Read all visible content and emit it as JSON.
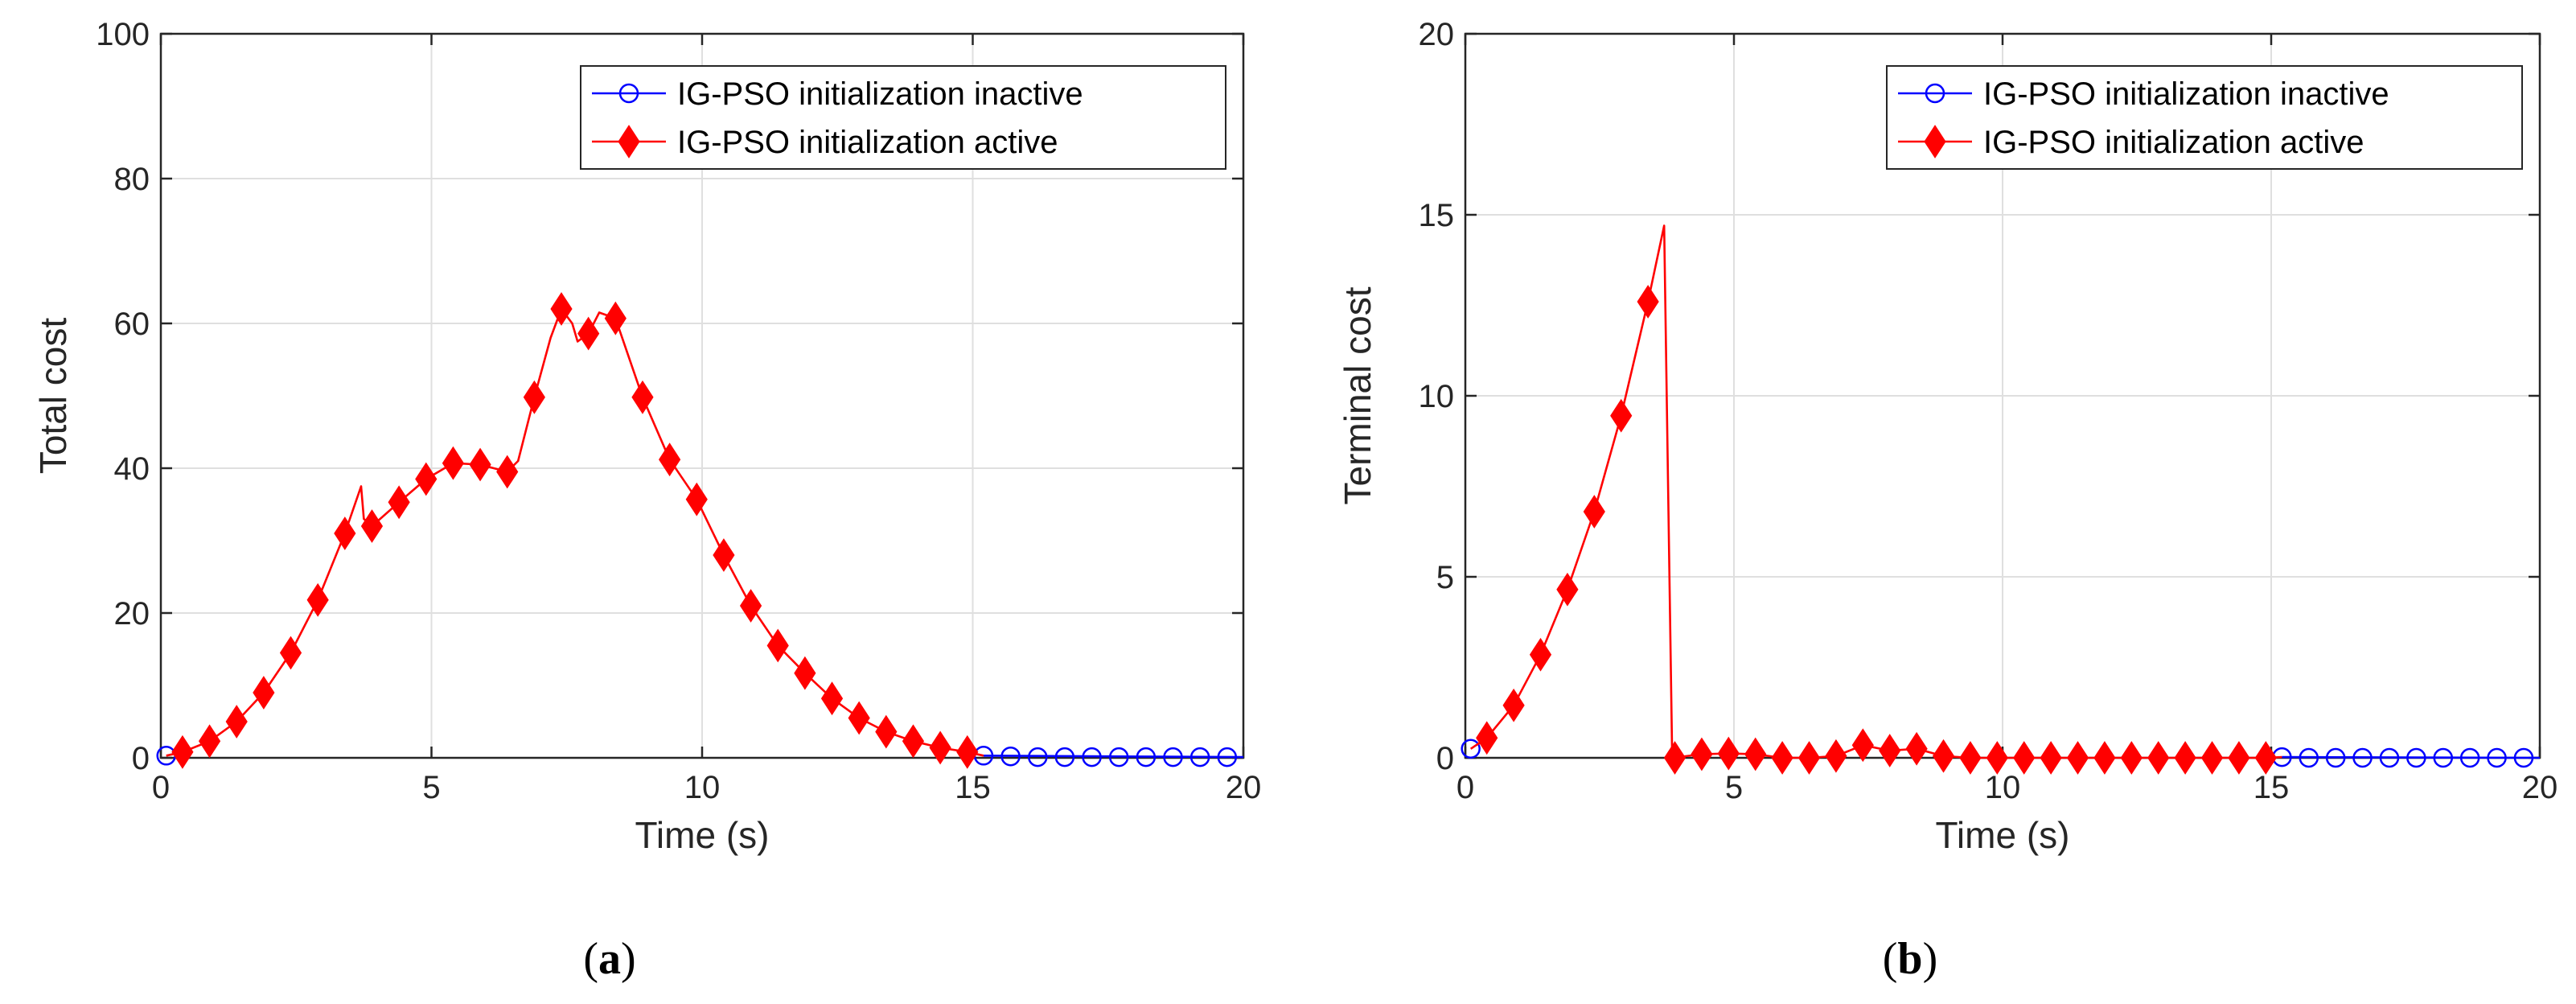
{
  "colors": {
    "inactive": "#0000FF",
    "active": "#FF0000",
    "grid": "#DFDFDF",
    "axis": "#262626"
  },
  "chart_data": [
    {
      "type": "line",
      "panel_label": "a",
      "title": "",
      "xlabel": "Time (s)",
      "ylabel": "Total cost",
      "xlim": [
        0,
        20
      ],
      "ylim": [
        0,
        100
      ],
      "xticks": [
        0,
        5,
        10,
        15,
        20
      ],
      "yticks": [
        0,
        20,
        40,
        60,
        80,
        100
      ],
      "grid": true,
      "legend_position": "top-right",
      "series": [
        {
          "name": "IG-PSO initialization inactive",
          "color": "#0000FF",
          "marker": "circle",
          "line": [
            [
              15.2,
              0.3
            ],
            [
              20,
              0.1
            ]
          ],
          "markers": [
            [
              0.1,
              0.3
            ],
            [
              15.2,
              0.3
            ],
            [
              15.7,
              0.2
            ],
            [
              16.2,
              0.1
            ],
            [
              16.7,
              0.1
            ],
            [
              17.2,
              0.1
            ],
            [
              17.7,
              0.1
            ],
            [
              18.2,
              0.1
            ],
            [
              18.7,
              0.1
            ],
            [
              19.2,
              0.1
            ],
            [
              19.7,
              0.1
            ]
          ]
        },
        {
          "name": "IG-PSO initialization active",
          "color": "#FF0000",
          "marker": "diamond",
          "line": [
            [
              0.1,
              0.3
            ],
            [
              0.4,
              0.8
            ],
            [
              0.9,
              2.3
            ],
            [
              1.4,
              5.0
            ],
            [
              1.9,
              9.0
            ],
            [
              2.4,
              14.5
            ],
            [
              2.9,
              21.8
            ],
            [
              3.4,
              31.0
            ],
            [
              3.7,
              37.5
            ],
            [
              3.75,
              33.0
            ],
            [
              3.9,
              32.0
            ],
            [
              4.4,
              35.3
            ],
            [
              4.9,
              38.5
            ],
            [
              5.4,
              40.7
            ],
            [
              5.9,
              40.5
            ],
            [
              6.4,
              39.5
            ],
            [
              6.6,
              41.0
            ],
            [
              6.9,
              49.8
            ],
            [
              7.2,
              58.0
            ],
            [
              7.4,
              62.0
            ],
            [
              7.6,
              60.0
            ],
            [
              7.7,
              57.5
            ],
            [
              7.9,
              58.6
            ],
            [
              8.1,
              61.5
            ],
            [
              8.4,
              60.7
            ],
            [
              8.9,
              49.8
            ],
            [
              9.4,
              41.2
            ],
            [
              9.9,
              35.7
            ],
            [
              10.4,
              28.0
            ],
            [
              10.9,
              21.0
            ],
            [
              11.4,
              15.5
            ],
            [
              11.9,
              11.7
            ],
            [
              12.4,
              8.2
            ],
            [
              12.9,
              5.5
            ],
            [
              13.4,
              3.6
            ],
            [
              13.9,
              2.3
            ],
            [
              14.4,
              1.4
            ],
            [
              14.9,
              0.8
            ],
            [
              15.2,
              0.3
            ]
          ],
          "markers": [
            [
              0.4,
              0.8
            ],
            [
              0.9,
              2.3
            ],
            [
              1.4,
              5.0
            ],
            [
              1.9,
              9.0
            ],
            [
              2.4,
              14.5
            ],
            [
              2.9,
              21.8
            ],
            [
              3.4,
              31.0
            ],
            [
              3.9,
              32.0
            ],
            [
              4.4,
              35.3
            ],
            [
              4.9,
              38.5
            ],
            [
              5.4,
              40.7
            ],
            [
              5.9,
              40.5
            ],
            [
              6.4,
              39.5
            ],
            [
              6.9,
              49.8
            ],
            [
              7.4,
              62.0
            ],
            [
              7.9,
              58.6
            ],
            [
              8.4,
              60.7
            ],
            [
              8.9,
              49.8
            ],
            [
              9.4,
              41.2
            ],
            [
              9.9,
              35.7
            ],
            [
              10.4,
              28.0
            ],
            [
              10.9,
              21.0
            ],
            [
              11.4,
              15.5
            ],
            [
              11.9,
              11.7
            ],
            [
              12.4,
              8.2
            ],
            [
              12.9,
              5.5
            ],
            [
              13.4,
              3.6
            ],
            [
              13.9,
              2.3
            ],
            [
              14.4,
              1.4
            ],
            [
              14.9,
              0.8
            ]
          ]
        }
      ]
    },
    {
      "type": "line",
      "panel_label": "b",
      "title": "",
      "xlabel": "Time (s)",
      "ylabel": "Terminal cost",
      "xlim": [
        0,
        20
      ],
      "ylim": [
        0,
        20
      ],
      "xticks": [
        0,
        5,
        10,
        15,
        20
      ],
      "yticks": [
        0,
        5,
        10,
        15,
        20
      ],
      "grid": true,
      "legend_position": "top-right",
      "series": [
        {
          "name": "IG-PSO initialization inactive",
          "color": "#0000FF",
          "marker": "circle",
          "line": [
            [
              15.2,
              0.02
            ],
            [
              20,
              0.0
            ]
          ],
          "markers": [
            [
              0.1,
              0.25
            ],
            [
              15.2,
              0.02
            ],
            [
              15.7,
              0.0
            ],
            [
              16.2,
              0.0
            ],
            [
              16.7,
              0.0
            ],
            [
              17.2,
              0.0
            ],
            [
              17.7,
              0.0
            ],
            [
              18.2,
              0.0
            ],
            [
              18.7,
              0.0
            ],
            [
              19.2,
              0.0
            ],
            [
              19.7,
              0.0
            ]
          ]
        },
        {
          "name": "IG-PSO initialization active",
          "color": "#FF0000",
          "marker": "diamond",
          "line": [
            [
              0.1,
              0.25
            ],
            [
              0.4,
              0.55
            ],
            [
              0.9,
              1.45
            ],
            [
              1.4,
              2.85
            ],
            [
              1.9,
              4.65
            ],
            [
              2.4,
              6.8
            ],
            [
              2.9,
              9.45
            ],
            [
              3.4,
              12.6
            ],
            [
              3.7,
              14.7
            ],
            [
              3.85,
              0.0
            ],
            [
              4.4,
              0.1
            ],
            [
              4.9,
              0.12
            ],
            [
              5.4,
              0.1
            ],
            [
              5.9,
              0.0
            ],
            [
              6.4,
              0.0
            ],
            [
              6.9,
              0.05
            ],
            [
              7.4,
              0.35
            ],
            [
              7.9,
              0.2
            ],
            [
              8.4,
              0.25
            ],
            [
              8.9,
              0.05
            ],
            [
              9.4,
              0.0
            ],
            [
              9.9,
              0.0
            ],
            [
              10.4,
              0.0
            ],
            [
              10.9,
              0.0
            ],
            [
              11.4,
              0.0
            ],
            [
              11.9,
              0.0
            ],
            [
              12.4,
              0.0
            ],
            [
              12.9,
              0.0
            ],
            [
              13.4,
              0.0
            ],
            [
              13.9,
              0.0
            ],
            [
              14.4,
              0.0
            ],
            [
              14.9,
              0.0
            ],
            [
              15.2,
              0.02
            ]
          ],
          "markers": [
            [
              0.4,
              0.55
            ],
            [
              0.9,
              1.45
            ],
            [
              1.4,
              2.85
            ],
            [
              1.9,
              4.65
            ],
            [
              2.4,
              6.8
            ],
            [
              2.9,
              9.45
            ],
            [
              3.4,
              12.6
            ],
            [
              3.9,
              0.0
            ],
            [
              4.4,
              0.1
            ],
            [
              4.9,
              0.12
            ],
            [
              5.4,
              0.1
            ],
            [
              5.9,
              0.0
            ],
            [
              6.4,
              0.0
            ],
            [
              6.9,
              0.05
            ],
            [
              7.4,
              0.35
            ],
            [
              7.9,
              0.2
            ],
            [
              8.4,
              0.25
            ],
            [
              8.9,
              0.05
            ],
            [
              9.4,
              0.0
            ],
            [
              9.9,
              0.0
            ],
            [
              10.4,
              0.0
            ],
            [
              10.9,
              0.0
            ],
            [
              11.4,
              0.0
            ],
            [
              11.9,
              0.0
            ],
            [
              12.4,
              0.0
            ],
            [
              12.9,
              0.0
            ],
            [
              13.4,
              0.0
            ],
            [
              13.9,
              0.0
            ],
            [
              14.4,
              0.0
            ],
            [
              14.9,
              0.0
            ]
          ]
        }
      ]
    }
  ],
  "captions": [
    "(a)",
    "(b)"
  ]
}
